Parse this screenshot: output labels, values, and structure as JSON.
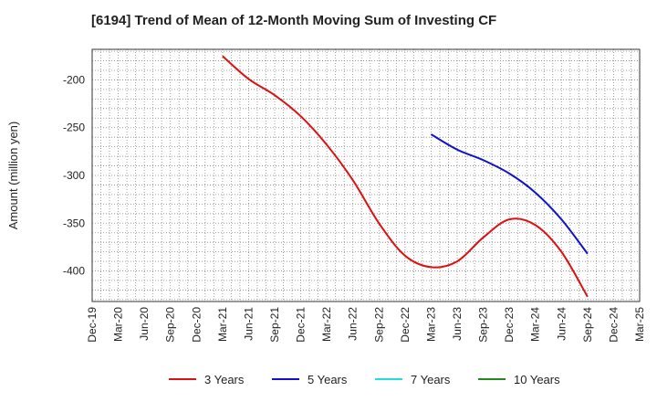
{
  "chart_data": {
    "type": "line",
    "title": "[6194]  Trend of Mean of 12-Month Moving Sum of Investing CF",
    "xlabel": "",
    "ylabel": "Amount (million yen)",
    "ylim": [
      -432,
      -168
    ],
    "yticks": [
      -200,
      -250,
      -300,
      -350,
      -400
    ],
    "ytick_labels": [
      "-200",
      "-250",
      "-300",
      "-350",
      "-400"
    ],
    "x_tick_labels": [
      "Dec-19",
      "Mar-20",
      "Jun-20",
      "Sep-20",
      "Dec-20",
      "Mar-21",
      "Jun-21",
      "Sep-21",
      "Dec-21",
      "Mar-22",
      "Jun-22",
      "Sep-22",
      "Dec-22",
      "Mar-23",
      "Jun-23",
      "Sep-23",
      "Dec-23",
      "Mar-24",
      "Jun-24",
      "Sep-24",
      "Dec-24",
      "Mar-25"
    ],
    "grid": true,
    "legend_position": "bottom",
    "series": [
      {
        "name": "3 Years",
        "color": "#dd1111",
        "points": [
          [
            "Mar-21",
            -175
          ],
          [
            "Jun-21",
            -199
          ],
          [
            "Sep-21",
            -216
          ],
          [
            "Dec-21",
            -238
          ],
          [
            "Mar-22",
            -268
          ],
          [
            "Jun-22",
            -305
          ],
          [
            "Sep-22",
            -350
          ],
          [
            "Dec-22",
            -384
          ],
          [
            "Mar-23",
            -396
          ],
          [
            "Jun-23",
            -390
          ],
          [
            "Sep-23",
            -365
          ],
          [
            "Dec-23",
            -346
          ],
          [
            "Mar-24",
            -352
          ],
          [
            "Jun-24",
            -380
          ],
          [
            "Sep-24",
            -427
          ]
        ]
      },
      {
        "name": "5 Years",
        "color": "#1111cc",
        "points": [
          [
            "Mar-23",
            -257
          ],
          [
            "Jun-23",
            -273
          ],
          [
            "Sep-23",
            -284
          ],
          [
            "Dec-23",
            -298
          ],
          [
            "Mar-24",
            -318
          ],
          [
            "Jun-24",
            -346
          ],
          [
            "Sep-24",
            -382
          ]
        ]
      },
      {
        "name": "7 Years",
        "color": "#22dddd",
        "points": []
      },
      {
        "name": "10 Years",
        "color": "#228822",
        "points": []
      }
    ]
  }
}
